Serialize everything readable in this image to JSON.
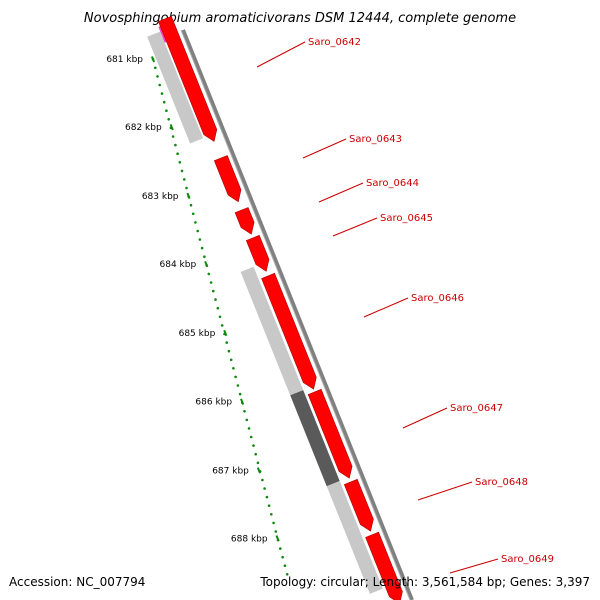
{
  "title": "Novosphingobium aromaticivorans DSM 12444, complete genome",
  "accession": "Accession: NC_007794",
  "topology": "Topology: circular; Length: 3,561,584 bp; Genes: 3,397",
  "colors": {
    "cds": "#ff0000",
    "cds_outline": "#b00000",
    "gene_light": "#c8c8c8",
    "gene_dark": "#5a5a5a",
    "backbone": "#808080",
    "tick": "#118811",
    "rna": "#ff3fbf",
    "label": "#cc0000"
  },
  "scale": {
    "ticks": [
      {
        "kbp": 681,
        "label": "681 kbp"
      },
      {
        "kbp": 682,
        "label": "682 kbp"
      },
      {
        "kbp": 683,
        "label": "683 kbp"
      },
      {
        "kbp": 684,
        "label": "684 kbp"
      },
      {
        "kbp": 685,
        "label": "685 kbp"
      },
      {
        "kbp": 686,
        "label": "686 kbp"
      },
      {
        "kbp": 687,
        "label": "687 kbp"
      },
      {
        "kbp": 688,
        "label": "688 kbp"
      }
    ]
  },
  "genes": [
    {
      "id": "Saro_0642"
    },
    {
      "id": "Saro_0643"
    },
    {
      "id": "Saro_0644"
    },
    {
      "id": "Saro_0645"
    },
    {
      "id": "Saro_0646"
    },
    {
      "id": "Saro_0647"
    },
    {
      "id": "Saro_0648"
    },
    {
      "id": "Saro_0649"
    }
  ]
}
